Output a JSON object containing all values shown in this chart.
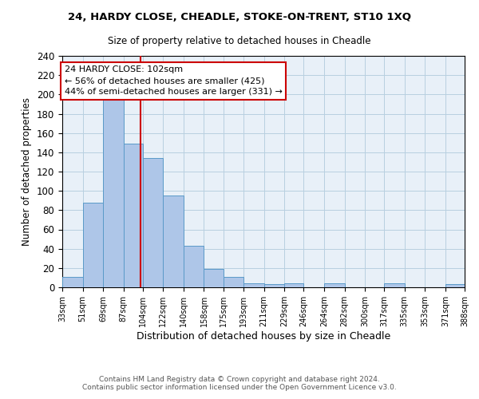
{
  "title1": "24, HARDY CLOSE, CHEADLE, STOKE-ON-TRENT, ST10 1XQ",
  "title2": "Size of property relative to detached houses in Cheadle",
  "xlabel": "Distribution of detached houses by size in Cheadle",
  "ylabel": "Number of detached properties",
  "bin_edges": [
    33,
    51,
    69,
    87,
    104,
    122,
    140,
    158,
    175,
    193,
    211,
    229,
    246,
    264,
    282,
    300,
    317,
    335,
    353,
    371,
    388
  ],
  "bar_heights": [
    11,
    88,
    195,
    149,
    134,
    95,
    43,
    19,
    11,
    4,
    3,
    4,
    0,
    4,
    0,
    0,
    4,
    0,
    0,
    3
  ],
  "bar_color": "#aec6e8",
  "bar_edge_color": "#5a9ac8",
  "vline_x": 102,
  "vline_color": "#cc0000",
  "annotation_title": "24 HARDY CLOSE: 102sqm",
  "annotation_line1": "← 56% of detached houses are smaller (425)",
  "annotation_line2": "44% of semi-detached houses are larger (331) →",
  "annotation_box_color": "#ffffff",
  "annotation_box_edge": "#cc0000",
  "ylim": [
    0,
    240
  ],
  "yticks": [
    0,
    20,
    40,
    60,
    80,
    100,
    120,
    140,
    160,
    180,
    200,
    220,
    240
  ],
  "footer1": "Contains HM Land Registry data © Crown copyright and database right 2024.",
  "footer2": "Contains public sector information licensed under the Open Government Licence v3.0.",
  "tick_labels": [
    "33sqm",
    "51sqm",
    "69sqm",
    "87sqm",
    "104sqm",
    "122sqm",
    "140sqm",
    "158sqm",
    "175sqm",
    "193sqm",
    "211sqm",
    "229sqm",
    "246sqm",
    "264sqm",
    "282sqm",
    "300sqm",
    "317sqm",
    "335sqm",
    "353sqm",
    "371sqm",
    "388sqm"
  ]
}
